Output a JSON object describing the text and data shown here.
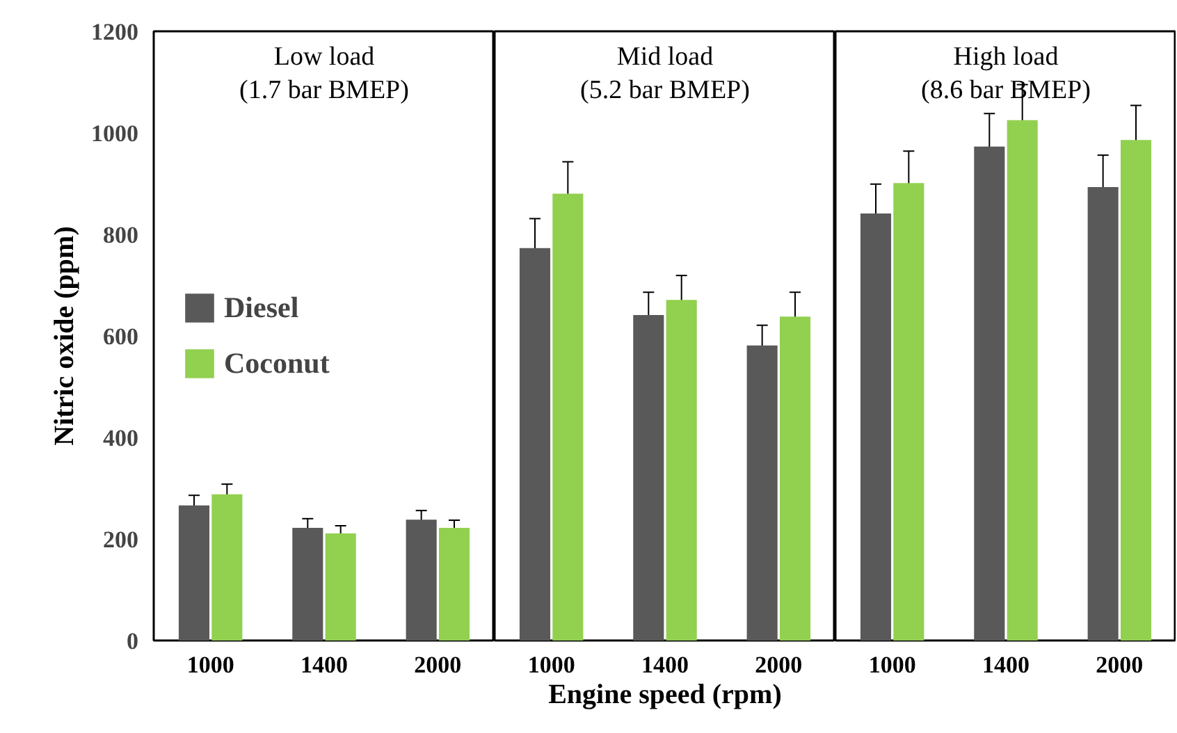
{
  "chart_data": [
    {
      "type": "bar",
      "title": "Low load\n(1.7 bar BMEP)",
      "ylabel": "Nitric oxide (ppm)",
      "categories": [
        "1000",
        "1400",
        "2000"
      ],
      "ylim": [
        0,
        1200
      ],
      "yticks": [
        0,
        200,
        400,
        600,
        800,
        1000,
        1200
      ],
      "grid": false,
      "legend": "left",
      "series": [
        {
          "name": "Diesel",
          "color": "#595959",
          "values": [
            266,
            222,
            238
          ],
          "errors": [
            20,
            18,
            18
          ]
        },
        {
          "name": "Coconut",
          "color": "#92d050",
          "values": [
            288,
            211,
            222
          ],
          "errors": [
            20,
            15,
            15
          ]
        }
      ]
    },
    {
      "type": "bar",
      "title": "Mid load\n(5.2 bar BMEP)",
      "xlabel": "Engine speed (rpm)",
      "categories": [
        "1000",
        "1400",
        "2000"
      ],
      "ylim": [
        0,
        1200
      ],
      "yticks": [
        0,
        200,
        400,
        600,
        800,
        1000,
        1200
      ],
      "grid": false,
      "tick_labels": "x",
      "series": [
        {
          "color": "#595959",
          "values": [
            773,
            641,
            581
          ],
          "errors": [
            58,
            45,
            40
          ]
        },
        {
          "color": "#92d050",
          "values": [
            880,
            671,
            638
          ],
          "errors": [
            63,
            48,
            48
          ]
        }
      ]
    },
    {
      "type": "bar",
      "title": "High load\n(8.6 bar BMEP)",
      "categories": [
        "1000",
        "1400",
        "2000"
      ],
      "ylim": [
        0,
        1200
      ],
      "yticks": [
        0,
        200,
        400,
        600,
        800,
        1000,
        1200
      ],
      "grid": false,
      "tick_labels": "x",
      "series": [
        {
          "color": "#595959",
          "values": [
            841,
            973,
            893
          ],
          "errors": [
            58,
            65,
            63
          ]
        },
        {
          "color": "#92d050",
          "values": [
            901,
            1025,
            986
          ],
          "errors": [
            63,
            70,
            68
          ]
        }
      ]
    }
  ]
}
